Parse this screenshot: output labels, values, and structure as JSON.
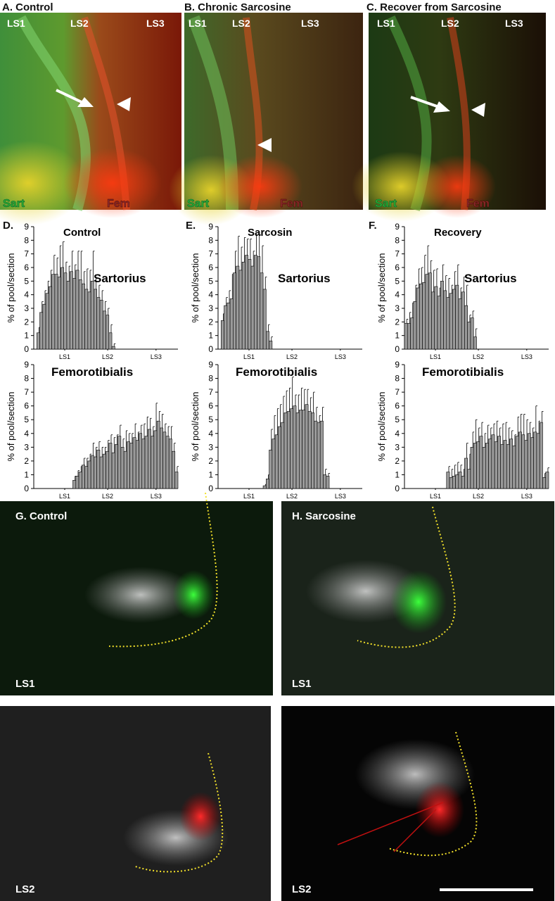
{
  "panels": [
    {
      "label": "A. Control",
      "tags": [
        "LS1",
        "LS2",
        "LS3"
      ],
      "muscles": [
        "Sart",
        "Fem"
      ]
    },
    {
      "label": "B. Chronic Sarcosine",
      "tags": [
        "LS1",
        "LS2",
        "LS3"
      ],
      "muscles": [
        "Sart",
        "Fem"
      ]
    },
    {
      "label": "C. Recover from Sarcosine",
      "tags": [
        "LS1",
        "LS2",
        "LS3"
      ],
      "muscles": [
        "Sart",
        "Fem"
      ]
    }
  ],
  "chart_labels": [
    "D.",
    "E.",
    "F."
  ],
  "sections": [
    {
      "label": "G. Control",
      "level": "LS1"
    },
    {
      "label": "H. Sarcosine",
      "level": "LS1"
    },
    {
      "level": "LS2"
    },
    {
      "level": "LS2"
    }
  ],
  "chart_data": [
    {
      "type": "bar",
      "label": "Control",
      "title": "Sartorius",
      "ylabel": "% of pool/section",
      "color": "#9a9a9a",
      "ylim": [
        0,
        9
      ],
      "yticks": [
        0,
        1,
        2,
        3,
        4,
        5,
        6,
        7,
        8,
        9
      ],
      "xlim": [
        0,
        48
      ],
      "xticks": [
        {
          "value": 10.3,
          "label": "LS1"
        },
        {
          "value": 24.6,
          "label": "LS2"
        },
        {
          "value": 40.7,
          "label": "LS3"
        }
      ],
      "values": [
        0,
        1.2,
        2.7,
        3.3,
        4.1,
        4.6,
        5.5,
        5.5,
        5.3,
        6.0,
        5.6,
        5.0,
        5.7,
        5.2,
        5.8,
        5.1,
        4.8,
        4.4,
        4.2,
        5.0,
        4.4,
        3.8,
        3.6,
        2.8,
        2.5,
        1.2,
        0.2
      ],
      "errors": [
        0,
        0.4,
        0.8,
        1.0,
        0.9,
        1.2,
        1.4,
        1.2,
        2.3,
        1.9,
        0.8,
        1.1,
        1.5,
        1.0,
        1.4,
        2.1,
        0.9,
        1.5,
        1.6,
        2.2,
        0.8,
        0.9,
        0.7,
        0.7,
        0.5,
        0.6,
        0.2
      ]
    },
    {
      "type": "bar",
      "title": "Femorotibialis",
      "ylabel": "% of pool/section",
      "color": "#9a9a9a",
      "ylim": [
        0,
        9
      ],
      "yticks": [
        0,
        1,
        2,
        3,
        4,
        5,
        6,
        7,
        8,
        9
      ],
      "xlim": [
        0,
        48
      ],
      "xticks": [
        {
          "value": 10.3,
          "label": "LS1"
        },
        {
          "value": 24.6,
          "label": "LS2"
        },
        {
          "value": 40.7,
          "label": "LS3"
        }
      ],
      "values": [
        0,
        0,
        0,
        0,
        0,
        0,
        0,
        0,
        0,
        0,
        0,
        0,
        0,
        0.6,
        0.9,
        1.2,
        1.7,
        1.6,
        2.0,
        2.4,
        2.3,
        2.8,
        2.3,
        2.5,
        2.7,
        3.3,
        2.6,
        3.2,
        3.8,
        3.0,
        2.7,
        3.4,
        3.3,
        3.7,
        3.5,
        4.0,
        3.6,
        3.8,
        4.3,
        3.8,
        4.2,
        4.9,
        4.4,
        4.1,
        3.8,
        3.6,
        2.7,
        1.2
      ],
      "errors": [
        0,
        0,
        0,
        0,
        0,
        0,
        0,
        0,
        0,
        0,
        0,
        0,
        0,
        0.3,
        0.4,
        0.4,
        0.5,
        0.6,
        0.5,
        0.9,
        0.7,
        0.6,
        0.7,
        0.5,
        0.8,
        0.6,
        1.1,
        0.7,
        0.8,
        0.6,
        1.5,
        0.6,
        0.7,
        1.0,
        0.6,
        0.6,
        1.1,
        1.4,
        0.8,
        0.7,
        2.0,
        0.7,
        1.0,
        0.6,
        0.7,
        0.9,
        0.6,
        0.4
      ]
    },
    {
      "type": "bar",
      "label": "Sarcosin",
      "title": "Sartorius",
      "ylabel": "% of pool/section",
      "color": "#9a9a9a",
      "ylim": [
        0,
        9
      ],
      "yticks": [
        0,
        1,
        2,
        3,
        4,
        5,
        6,
        7,
        8,
        9
      ],
      "xlim": [
        0,
        48
      ],
      "xticks": [
        {
          "value": 10.3,
          "label": "LS1"
        },
        {
          "value": 24.6,
          "label": "LS2"
        },
        {
          "value": 40.7,
          "label": "LS3"
        }
      ],
      "values": [
        0,
        2.1,
        3.2,
        3.4,
        3.7,
        5.6,
        6.1,
        5.8,
        6.4,
        6.9,
        6.6,
        6.1,
        6.9,
        6.8,
        5.6,
        4.4,
        1.3,
        0.6
      ],
      "errors": [
        0,
        0.5,
        0.6,
        0.9,
        1.8,
        1.6,
        2.2,
        1.7,
        1.8,
        1.2,
        1.5,
        1.1,
        1.5,
        1.6,
        2.0,
        0.9,
        0.5,
        0.3
      ]
    },
    {
      "type": "bar",
      "title": "Femorotibialis",
      "ylabel": "% of pool/section",
      "color": "#9a9a9a",
      "ylim": [
        0,
        9
      ],
      "yticks": [
        0,
        1,
        2,
        3,
        4,
        5,
        6,
        7,
        8,
        9
      ],
      "xlim": [
        0,
        48
      ],
      "xticks": [
        {
          "value": 10.3,
          "label": "LS1"
        },
        {
          "value": 24.6,
          "label": "LS2"
        },
        {
          "value": 40.7,
          "label": "LS3"
        }
      ],
      "values": [
        0,
        0,
        0,
        0,
        0,
        0,
        0,
        0,
        0,
        0,
        0,
        0,
        0,
        0,
        0,
        0.2,
        0.7,
        2.8,
        3.6,
        3.9,
        4.5,
        4.8,
        5.5,
        5.6,
        5.8,
        6.0,
        5.5,
        5.7,
        5.7,
        6.1,
        5.6,
        5.5,
        4.9,
        4.8,
        4.9,
        1.0,
        0.9
      ],
      "errors": [
        0,
        0,
        0,
        0,
        0,
        0,
        0,
        0,
        0,
        0,
        0,
        0,
        0,
        0,
        0,
        0.1,
        0.3,
        1.5,
        1.7,
        1.9,
        1.6,
        1.9,
        1.6,
        1.7,
        2.3,
        0.8,
        1.3,
        1.6,
        1.5,
        1.1,
        1.0,
        1.5,
        1.0,
        0.5,
        1.0,
        0.4,
        0.2
      ]
    },
    {
      "type": "bar",
      "label": "Recovery",
      "title": "Sartorius",
      "ylabel": "% of pool/section",
      "color": "#9a9a9a",
      "ylim": [
        0,
        9
      ],
      "yticks": [
        0,
        1,
        2,
        3,
        4,
        5,
        6,
        7,
        8,
        9
      ],
      "xlim": [
        0,
        48
      ],
      "xticks": [
        {
          "value": 10.3,
          "label": "LS1"
        },
        {
          "value": 24.6,
          "label": "LS2"
        },
        {
          "value": 40.7,
          "label": "LS3"
        }
      ],
      "values": [
        1.9,
        1.9,
        2.3,
        3.5,
        4.5,
        4.8,
        4.9,
        5.5,
        5.6,
        4.2,
        4.6,
        3.9,
        5.0,
        4.3,
        3.8,
        4.1,
        4.4,
        4.7,
        3.7,
        4.2,
        3.2,
        2.0,
        2.3,
        0.9
      ],
      "errors": [
        0.3,
        0.8,
        1.1,
        1.2,
        1.4,
        1.2,
        2.0,
        2.1,
        0.9,
        1.6,
        1.3,
        0.6,
        1.2,
        1.1,
        1.4,
        0.6,
        1.3,
        1.5,
        0.8,
        1.1,
        1.5,
        0.5,
        0.5,
        0.6
      ]
    },
    {
      "type": "bar",
      "title": "Femorotibialis",
      "ylabel": "% of pool/section",
      "color": "#9a9a9a",
      "ylim": [
        0,
        9
      ],
      "yticks": [
        0,
        1,
        2,
        3,
        4,
        5,
        6,
        7,
        8,
        9
      ],
      "xlim": [
        0,
        48
      ],
      "xticks": [
        {
          "value": 10.3,
          "label": "LS1"
        },
        {
          "value": 24.6,
          "label": "LS2"
        },
        {
          "value": 40.7,
          "label": "LS3"
        }
      ],
      "values": [
        0,
        0,
        0,
        0,
        0,
        0,
        0,
        0,
        0,
        0,
        0,
        0,
        0,
        0,
        1.2,
        0.8,
        0.9,
        1.0,
        1.2,
        0.9,
        2.2,
        1.4,
        3.0,
        3.3,
        3.4,
        3.8,
        3.0,
        3.3,
        3.6,
        3.9,
        3.4,
        3.8,
        3.2,
        3.5,
        3.2,
        3.6,
        3.1,
        3.8,
        4.1,
        3.9,
        3.5,
        4.0,
        3.7,
        4.1,
        4.0,
        4.8,
        0.8,
        1.2
      ],
      "errors": [
        0,
        0,
        0,
        0,
        0,
        0,
        0,
        0,
        0,
        0,
        0,
        0,
        0,
        0,
        0.4,
        0.6,
        0.8,
        0.9,
        0.5,
        0.5,
        1.1,
        1.1,
        1.1,
        1.7,
        1.0,
        1.0,
        1.0,
        1.3,
        0.8,
        0.8,
        1.5,
        0.6,
        1.5,
        1.3,
        1.2,
        0.6,
        0.8,
        1.4,
        1.3,
        1.5,
        1.5,
        0.8,
        0.7,
        1.9,
        0.9,
        0.8,
        0.3,
        0.3
      ]
    }
  ]
}
